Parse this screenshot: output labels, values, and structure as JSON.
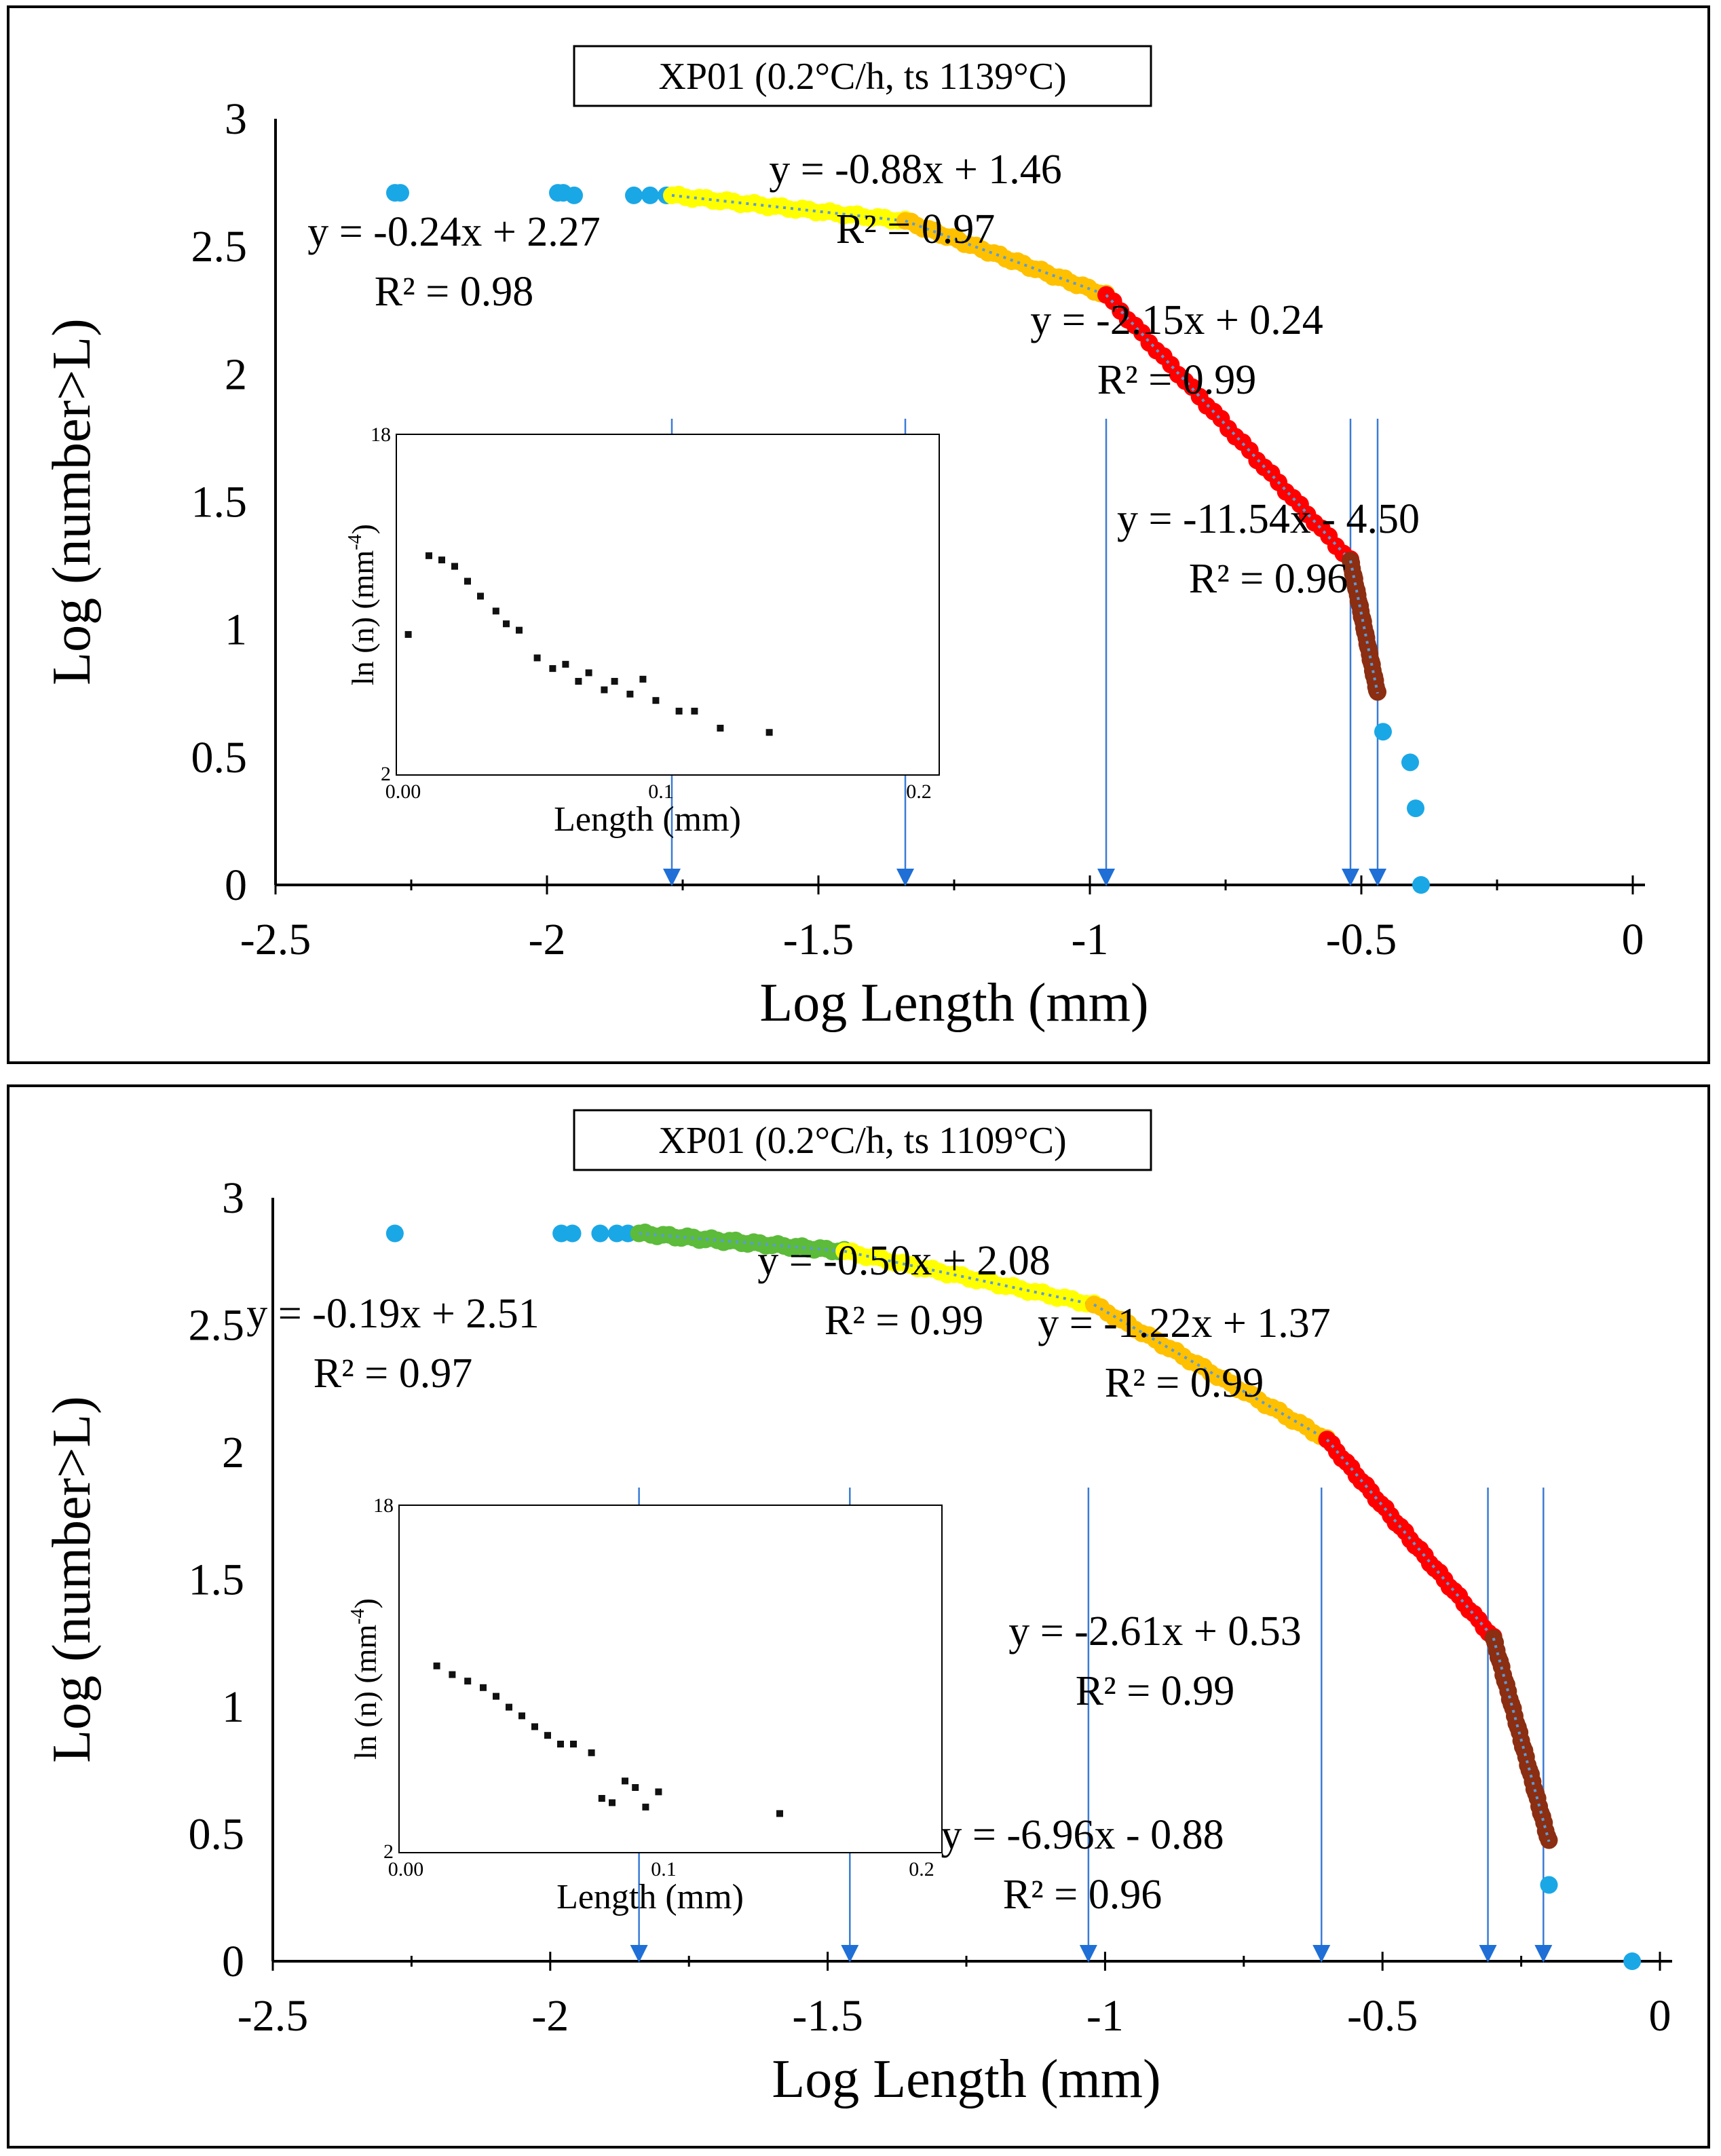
{
  "chart_data": [
    {
      "type": "scatter",
      "title": "XP01 (0.2°C/h, ts 1139°C)",
      "xlabel": "Log Length (mm)",
      "ylabel": "Log (number>L)",
      "xlim": [
        -2.5,
        0
      ],
      "ylim": [
        0,
        3
      ],
      "xticks": [
        "-2.5",
        "-2",
        "-1.5",
        "-1",
        "-0.5",
        "0"
      ],
      "yticks": [
        "0",
        "0.5",
        "1",
        "1.5",
        "2",
        "2.5",
        "3"
      ],
      "series": [
        {
          "name": "outliers",
          "color": "#1aa7e6",
          "x": [
            -2.28,
            -2.27,
            -1.98,
            -1.97,
            -1.95,
            -1.84,
            -1.81,
            -1.78,
            -0.46,
            -0.41,
            -0.4,
            -0.39
          ],
          "y": [
            2.71,
            2.71,
            2.71,
            2.71,
            2.7,
            2.7,
            2.7,
            2.7,
            0.6,
            0.48,
            0.3,
            0.0
          ]
        },
        {
          "name": "segment 1",
          "color": "#ffff00",
          "x": [
            -1.77,
            -1.34
          ],
          "y": [
            2.7,
            2.6
          ]
        },
        {
          "name": "segment 2",
          "color": "#ffc000",
          "x": [
            -1.34,
            -0.97
          ],
          "y": [
            2.6,
            2.31
          ]
        },
        {
          "name": "segment 3",
          "color": "#ff0000",
          "x": [
            -0.97,
            -0.52
          ],
          "y": [
            2.31,
            1.27
          ]
        },
        {
          "name": "segment 4",
          "color": "#8b2e12",
          "x": [
            -0.52,
            -0.47
          ],
          "y": [
            1.27,
            0.75
          ]
        }
      ],
      "fits": [
        {
          "equation": "y = -0.24x + 2.27",
          "r2": "R² = 0.98"
        },
        {
          "equation": "y = -0.88x + 1.46",
          "r2": "R² = 0.97"
        },
        {
          "equation": "y = -2.15x + 0.24",
          "r2": "R² = 0.99"
        },
        {
          "equation": "y = -11.54x  - 4.50",
          "r2": "R² = 0.96"
        }
      ],
      "breakpoints_x": [
        -1.77,
        -1.34,
        -0.97,
        -0.52,
        -0.47
      ],
      "inset": {
        "type": "scatter",
        "xlabel": "Length (mm)",
        "ylabel": "ln (n) (mm",
        "ylabel_sup": "-4",
        "ylabel_close": ")",
        "xticks": [
          "0.00",
          "0.1",
          "0.2"
        ],
        "xlim": [
          0,
          0.2
        ],
        "ylim": [
          2,
          18
        ],
        "ytick_bottom": "2",
        "ytick_top": "18",
        "x": [
          0.002,
          0.01,
          0.015,
          0.02,
          0.025,
          0.03,
          0.036,
          0.04,
          0.045,
          0.052,
          0.058,
          0.063,
          0.068,
          0.072,
          0.078,
          0.082,
          0.088,
          0.093,
          0.098,
          0.107,
          0.113,
          0.123,
          0.142
        ],
        "y": [
          8.6,
          12.3,
          12.1,
          11.8,
          11.1,
          10.4,
          9.7,
          9.1,
          8.8,
          7.5,
          7.0,
          7.2,
          6.4,
          6.8,
          6.0,
          6.4,
          5.8,
          6.5,
          5.5,
          5.0,
          5.0,
          4.2,
          4.0
        ]
      }
    },
    {
      "type": "scatter",
      "title": "XP01 (0.2°C/h, ts 1109°C)",
      "xlabel": "Log Length (mm)",
      "ylabel": "Log (number>L)",
      "xlim": [
        -2.5,
        0
      ],
      "ylim": [
        0,
        3
      ],
      "xticks": [
        "-2.5",
        "-2",
        "-1.5",
        "-1",
        "-0.5",
        "0"
      ],
      "yticks": [
        "0",
        "0.5",
        "1",
        "1.5",
        "2",
        "2.5",
        "3"
      ],
      "series": [
        {
          "name": "outliers",
          "color": "#1aa7e6",
          "x": [
            -2.28,
            -1.98,
            -1.96,
            -1.91,
            -1.88,
            -1.86,
            -0.2,
            -0.05
          ],
          "y": [
            2.86,
            2.86,
            2.86,
            2.86,
            2.86,
            2.86,
            0.3,
            0.0
          ]
        },
        {
          "name": "segment 1",
          "color": "#5cbb3a",
          "x": [
            -1.84,
            -1.47
          ],
          "y": [
            2.86,
            2.79
          ]
        },
        {
          "name": "segment 2",
          "color": "#ffff00",
          "x": [
            -1.47,
            -1.02
          ],
          "y": [
            2.79,
            2.58
          ]
        },
        {
          "name": "segment 3",
          "color": "#ffc000",
          "x": [
            -1.02,
            -0.6
          ],
          "y": [
            2.58,
            2.05
          ]
        },
        {
          "name": "segment 4",
          "color": "#ff0000",
          "x": [
            -0.6,
            -0.3
          ],
          "y": [
            2.05,
            1.27
          ]
        },
        {
          "name": "segment 5",
          "color": "#8b2e12",
          "x": [
            -0.3,
            -0.2
          ],
          "y": [
            1.27,
            0.47
          ]
        }
      ],
      "fits": [
        {
          "equation": "y = -0.19x + 2.51",
          "r2": "R² = 0.97"
        },
        {
          "equation": "y = -0.50x + 2.08",
          "r2": "R² = 0.99"
        },
        {
          "equation": "y = -1.22x + 1.37",
          "r2": "R² = 0.99"
        },
        {
          "equation": "y = -2.61x + 0.53",
          "r2": "R² = 0.99"
        },
        {
          "equation": "y = -6.96x  - 0.88",
          "r2": "R² = 0.96"
        }
      ],
      "breakpoints_x": [
        -1.84,
        -1.46,
        -1.03,
        -0.61,
        -0.31,
        -0.21
      ],
      "inset": {
        "type": "scatter",
        "xlabel": "Length (mm)",
        "ylabel": "ln (n) (mm",
        "ylabel_sup": "-4",
        "ylabel_close": ")",
        "xticks": [
          "0.00",
          "0.1",
          "0.2"
        ],
        "xlim": [
          0,
          0.2
        ],
        "ylim": [
          2,
          18
        ],
        "ytick_bottom": "2",
        "ytick_top": "18",
        "x": [
          0.012,
          0.018,
          0.024,
          0.03,
          0.035,
          0.04,
          0.045,
          0.05,
          0.055,
          0.06,
          0.065,
          0.072,
          0.076,
          0.08,
          0.085,
          0.089,
          0.093,
          0.098,
          0.145
        ],
        "y": [
          10.6,
          10.2,
          9.9,
          9.6,
          9.2,
          8.7,
          8.3,
          7.8,
          7.4,
          7.0,
          7.0,
          6.6,
          4.5,
          4.3,
          5.3,
          5.0,
          4.1,
          4.8,
          3.8
        ]
      }
    }
  ]
}
